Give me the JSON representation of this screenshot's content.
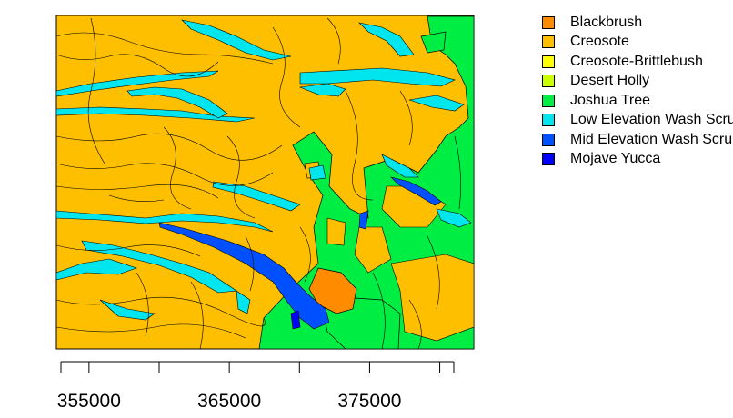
{
  "map": {
    "type": "vegetation-polygon-map",
    "x_axis": {
      "tick_labels": [
        "355000",
        "365000",
        "375000"
      ],
      "ticks": [
        353000,
        355000,
        360000,
        365000,
        370000,
        375000,
        380000,
        381000
      ],
      "range": [
        353000,
        381000
      ]
    },
    "colors": {
      "background": "#FDBF00",
      "border": "#000000"
    }
  },
  "legend": {
    "items": [
      {
        "label": "Blackbrush",
        "color": "#FF8C00"
      },
      {
        "label": "Creosote",
        "color": "#FDBF00"
      },
      {
        "label": "Creosote-Brittlebush",
        "color": "#FFFF00"
      },
      {
        "label": "Desert Holly",
        "color": "#CCFF00"
      },
      {
        "label": "Joshua Tree",
        "color": "#00EE44"
      },
      {
        "label": "Low Elevation Wash Scrub",
        "color": "#00E5EE"
      },
      {
        "label": "Mid Elevation Wash Scrub",
        "color": "#0050FF"
      },
      {
        "label": "Mojave Yucca",
        "color": "#0000FF"
      }
    ]
  }
}
